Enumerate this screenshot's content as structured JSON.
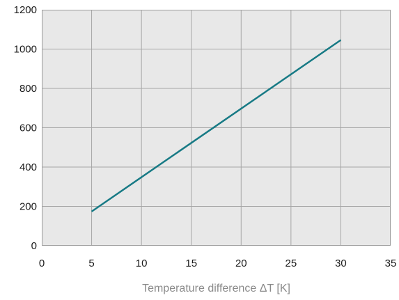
{
  "chart_data": {
    "type": "line",
    "title": "",
    "xlabel": "Temperature difference ΔT [K]",
    "ylabel": "",
    "xlim": [
      0,
      35
    ],
    "ylim": [
      0,
      1200
    ],
    "x_ticks": [
      0,
      5,
      10,
      15,
      20,
      25,
      30,
      35
    ],
    "y_ticks": [
      0,
      200,
      400,
      600,
      800,
      1000,
      1200
    ],
    "x_tick_labels": [
      "0",
      "5",
      "10",
      "15",
      "20",
      "25",
      "30",
      "35"
    ],
    "y_tick_labels": [
      "0",
      "200",
      "400",
      "600",
      "800",
      "1000",
      "1200"
    ],
    "grid": true,
    "legend": "none",
    "series": [
      {
        "x": [
          5,
          30
        ],
        "values": [
          174,
          1046
        ],
        "color": "#177a85"
      }
    ],
    "colors": {
      "plot_background": "#e8e8e8",
      "grid": "#a6a6a6",
      "axis": "#9a9a9a",
      "line": "#177a85"
    }
  }
}
